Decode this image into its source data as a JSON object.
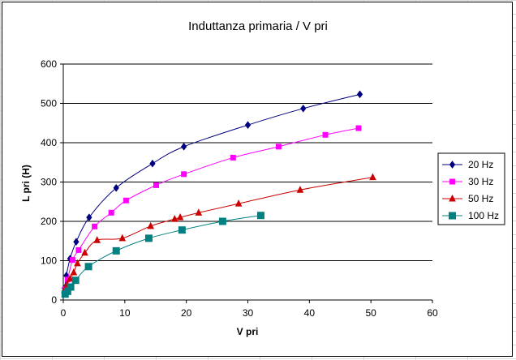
{
  "chart_data": {
    "type": "line",
    "title": "Induttanza primaria / V pri",
    "xlabel": "V pri",
    "ylabel": "L pri (H)",
    "xlim": [
      0,
      60
    ],
    "ylim": [
      0,
      600
    ],
    "xticks": [
      0,
      10,
      20,
      30,
      40,
      50,
      60
    ],
    "yticks": [
      0,
      100,
      200,
      300,
      400,
      500,
      600
    ],
    "grid": "horizontal major",
    "legend_position": "right",
    "series": [
      {
        "name": "20 Hz",
        "color": "#000080",
        "marker": "diamond",
        "x": [
          0.2,
          0.5,
          1.1,
          2.1,
          4.2,
          8.6,
          14.5,
          19.6,
          30.0,
          39.0,
          48.2
        ],
        "y": [
          30,
          62,
          105,
          148,
          210,
          285,
          347,
          390,
          445,
          487,
          523
        ]
      },
      {
        "name": "30 Hz",
        "color": "#FF00FF",
        "marker": "square",
        "x": [
          0.3,
          0.7,
          1.5,
          2.5,
          5.1,
          7.8,
          10.2,
          15.1,
          19.6,
          27.6,
          35.0,
          42.6,
          48.0
        ],
        "y": [
          28,
          52,
          102,
          127,
          187,
          222,
          253,
          292,
          320,
          362,
          390,
          420,
          437
        ]
      },
      {
        "name": "50 Hz",
        "color": "#CC0000",
        "marker": "triangle",
        "x": [
          0.2,
          0.6,
          1.1,
          1.7,
          2.3,
          3.5,
          5.5,
          9.6,
          14.2,
          18.1,
          19.0,
          22.0,
          28.5,
          38.5,
          50.3
        ],
        "y": [
          25,
          40,
          54,
          70,
          93,
          120,
          152,
          157,
          188,
          206,
          210,
          222,
          245,
          280,
          312
        ]
      },
      {
        "name": "100 Hz",
        "color": "#008080",
        "marker": "square",
        "x": [
          0.3,
          0.7,
          1.2,
          2.0,
          4.1,
          8.6,
          13.9,
          19.3,
          25.9,
          32.1
        ],
        "y": [
          15,
          22,
          33,
          50,
          85,
          125,
          157,
          178,
          200,
          215
        ]
      }
    ]
  }
}
